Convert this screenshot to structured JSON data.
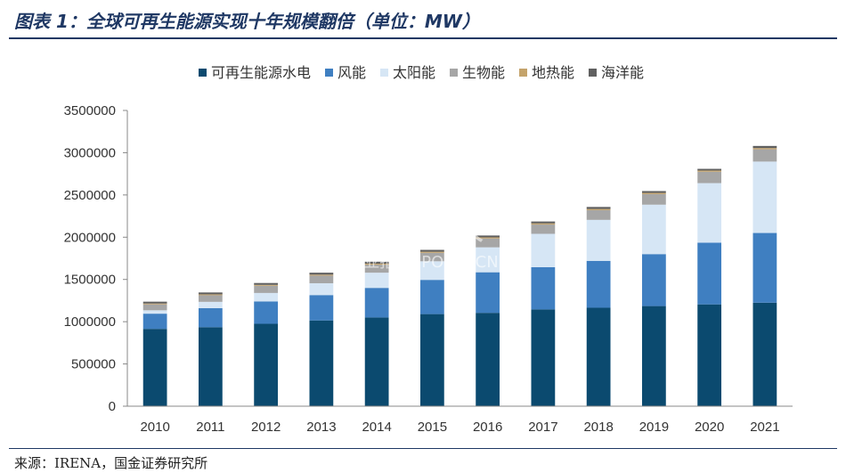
{
  "header": {
    "title": "图表 1：全球可再生能源实现十年规模翻倍（单位：MW）"
  },
  "footer": {
    "source": "来源：IRENA，国金证券研究所"
  },
  "watermark": {
    "main": "并购家",
    "sub": "行业报告 IPOIPO.CN"
  },
  "chart_data": {
    "type": "bar",
    "stacked": true,
    "title": "",
    "xlabel": "",
    "ylabel": "",
    "ylim": [
      0,
      3500000
    ],
    "yticks": [
      0,
      500000,
      1000000,
      1500000,
      2000000,
      2500000,
      3000000,
      3500000
    ],
    "legend_position": "top",
    "grid": false,
    "categories": [
      "2010",
      "2011",
      "2012",
      "2013",
      "2014",
      "2015",
      "2016",
      "2017",
      "2018",
      "2019",
      "2020",
      "2021"
    ],
    "series": [
      {
        "name": "可再生能源水电",
        "color": "#0b4a6f",
        "values": [
          915000,
          935000,
          975000,
          1015000,
          1050000,
          1090000,
          1105000,
          1145000,
          1165000,
          1185000,
          1205000,
          1225000
        ]
      },
      {
        "name": "风能",
        "color": "#3f7fc1",
        "values": [
          180000,
          225000,
          265000,
          300000,
          350000,
          405000,
          480000,
          500000,
          555000,
          615000,
          730000,
          825000
        ]
      },
      {
        "name": "太阳能",
        "color": "#d6e6f5",
        "values": [
          40000,
          75000,
          100000,
          140000,
          180000,
          220000,
          295000,
          395000,
          485000,
          585000,
          705000,
          845000
        ]
      },
      {
        "name": "生物能",
        "color": "#a6a6a6",
        "values": [
          70000,
          78000,
          85000,
          90000,
          95000,
          100000,
          105000,
          110000,
          115000,
          125000,
          135000,
          145000
        ]
      },
      {
        "name": "地热能",
        "color": "#c4a36b",
        "values": [
          10000,
          11000,
          11000,
          12000,
          12000,
          13000,
          13000,
          14000,
          14000,
          14000,
          14000,
          15000
        ]
      },
      {
        "name": "海洋能",
        "color": "#606060",
        "values": [
          22000,
          22000,
          22000,
          23000,
          23000,
          22000,
          22000,
          22000,
          24000,
          22000,
          20000,
          25000
        ]
      }
    ]
  }
}
